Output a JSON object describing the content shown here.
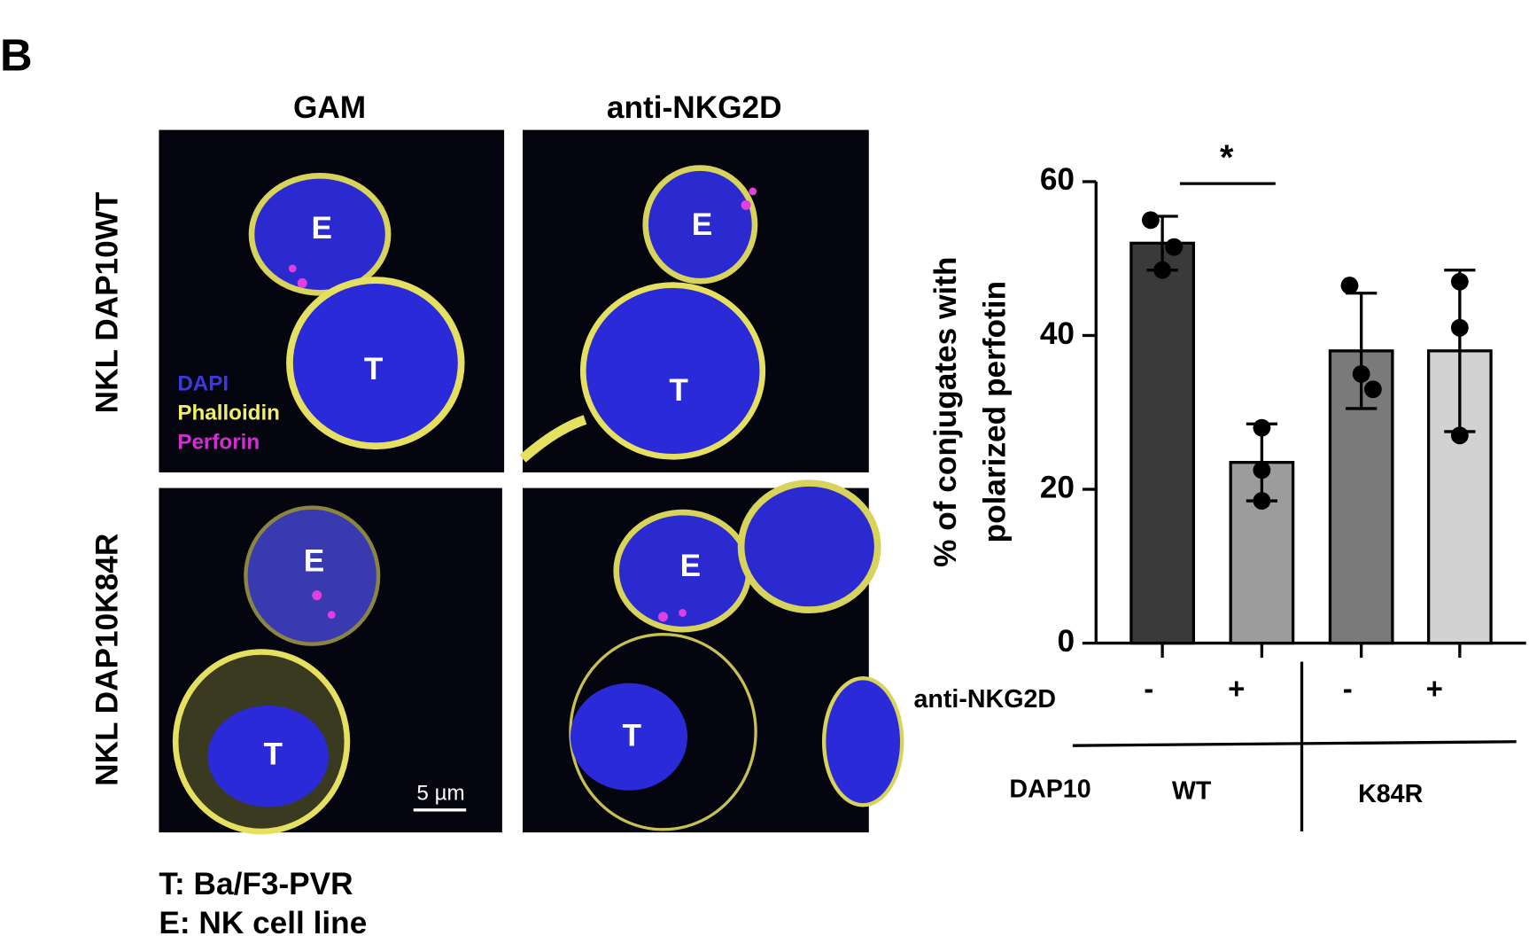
{
  "figure": {
    "panel_label": "B",
    "columns": [
      "GAM",
      "anti-NKG2D"
    ],
    "rows": [
      "NKL DAP10WT",
      "NKL DAP10K84R"
    ],
    "panels": [
      {
        "labels": [
          "E",
          "T"
        ]
      },
      {
        "labels": [
          "E",
          "T"
        ]
      },
      {
        "labels": [
          "E",
          "T"
        ]
      },
      {
        "labels": [
          "E",
          "T"
        ]
      }
    ],
    "legend": [
      "DAPI",
      "Phalloidin",
      "Perforin"
    ],
    "scale_bar": "5 µm",
    "footnotes": [
      "T: Ba/F3-PVR",
      "E: NK cell line"
    ]
  },
  "chart_data": {
    "type": "bar",
    "ylabel": [
      "% of conjugates with",
      "polarized perfotin"
    ],
    "ylim": [
      0,
      60
    ],
    "yticks": [
      0,
      20,
      40,
      60
    ],
    "series": [
      {
        "values": [
          52,
          23.5,
          38,
          38
        ],
        "errors": [
          3.5,
          5,
          7.5,
          10.5
        ],
        "colors": [
          "#3a3a3a",
          "#9c9c9c",
          "#7a7a7a",
          "#d2d2d2"
        ],
        "points": [
          [
            55,
            51.5,
            48.5
          ],
          [
            28,
            22.5,
            18.5
          ],
          [
            46.5,
            33,
            35
          ],
          [
            47,
            41,
            27
          ]
        ]
      }
    ],
    "significance": "*",
    "x_row": {
      "label": "anti-NKG2D",
      "values": [
        "-",
        "+",
        "-",
        "+"
      ]
    },
    "groups": {
      "label": "DAP10",
      "names": [
        "WT",
        "K84R"
      ]
    }
  }
}
